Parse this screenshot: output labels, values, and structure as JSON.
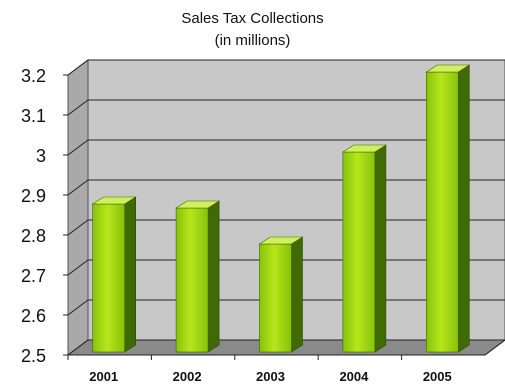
{
  "chart_data": {
    "type": "bar",
    "title": "Sales Tax Collections",
    "subtitle": "(in millions)",
    "categories": [
      "2001",
      "2002",
      "2003",
      "2004",
      "2005"
    ],
    "values": [
      2.87,
      2.86,
      2.77,
      3.0,
      3.2
    ],
    "ylim": [
      2.5,
      3.2
    ],
    "yticks": [
      "2.5",
      "2.6",
      "2.7",
      "2.8",
      "2.9",
      "3",
      "3.1",
      "3.2"
    ],
    "xlabel": "",
    "ylabel": "",
    "grid": true,
    "style": "3d",
    "colors": {
      "bar_light": "#b8e61a",
      "bar_mid": "#86c20c",
      "bar_dark": "#3f6a04",
      "bar_top": "#cff05a",
      "wall": "#c8c8c8",
      "floor": "#8a8a8a",
      "gridline": "#222222"
    }
  }
}
